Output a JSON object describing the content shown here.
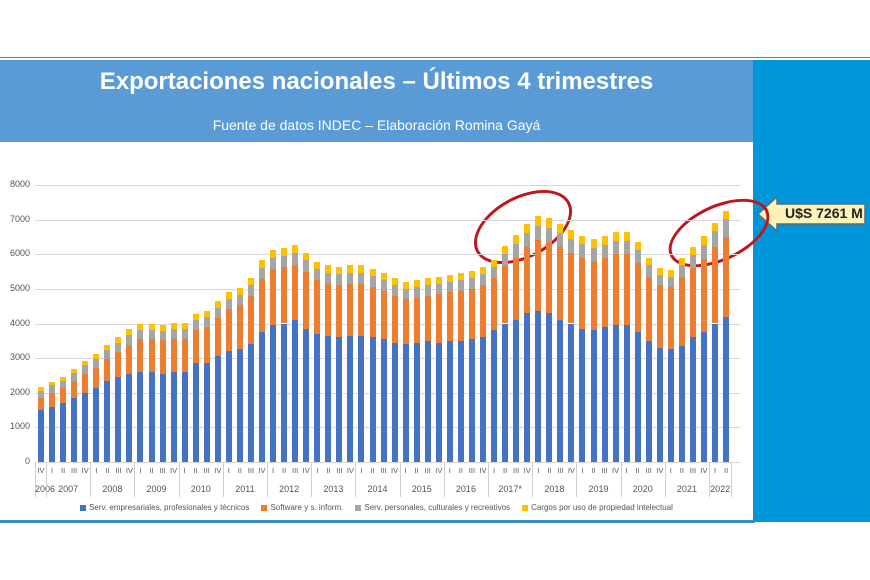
{
  "slide": {
    "title": "Exportaciones nacionales – Últimos 4 trimestres",
    "subtitle": "Fuente de datos INDEC – Elaboración Romina Gayá",
    "callout": "U$S 7261 M",
    "colors": {
      "header_bg": "#5b9bd5",
      "side_panel": "#0096db",
      "callout_bg": "#fdf3b8",
      "highlight_ellipse": "#c0161b"
    }
  },
  "chart_data": {
    "type": "bar",
    "stacked": true,
    "title": "Exportaciones nacionales – Últimos 4 trimestres",
    "subtitle": "Fuente de datos INDEC – Elaboración Romina Gayá",
    "xlabel": "",
    "ylabel": "",
    "ylim": [
      0,
      8000
    ],
    "yticks": [
      0,
      1000,
      2000,
      3000,
      4000,
      5000,
      6000,
      7000,
      8000
    ],
    "grid": true,
    "legend_position": "bottom",
    "annotation": "U$S 7261 M",
    "highlights": [
      "2017 II – 2018 I",
      "2021 III – 2022 II"
    ],
    "years": [
      {
        "label": "2006",
        "quarters": 1
      },
      {
        "label": "2007",
        "quarters": 4
      },
      {
        "label": "2008",
        "quarters": 4
      },
      {
        "label": "2009",
        "quarters": 4
      },
      {
        "label": "2010",
        "quarters": 4
      },
      {
        "label": "2011",
        "quarters": 4
      },
      {
        "label": "2012",
        "quarters": 4
      },
      {
        "label": "2013",
        "quarters": 4
      },
      {
        "label": "2014",
        "quarters": 4
      },
      {
        "label": "2015",
        "quarters": 4
      },
      {
        "label": "2016",
        "quarters": 4
      },
      {
        "label": "2017*",
        "quarters": 4
      },
      {
        "label": "2018",
        "quarters": 4
      },
      {
        "label": "2019",
        "quarters": 4
      },
      {
        "label": "2020",
        "quarters": 4
      },
      {
        "label": "2021",
        "quarters": 4
      },
      {
        "label": "2022",
        "quarters": 2
      }
    ],
    "categories": [
      "IV",
      "I",
      "II",
      "III",
      "IV",
      "I",
      "II",
      "III",
      "IV",
      "I",
      "II",
      "III",
      "IV",
      "I",
      "II",
      "III",
      "IV",
      "I",
      "II",
      "III",
      "IV",
      "I",
      "II",
      "III",
      "IV",
      "I",
      "II",
      "III",
      "IV",
      "I",
      "II",
      "III",
      "IV",
      "I",
      "II",
      "III",
      "IV",
      "I",
      "II",
      "III",
      "IV",
      "I",
      "II",
      "III",
      "IV",
      "I",
      "II",
      "III",
      "IV",
      "I",
      "II",
      "III",
      "IV",
      "I",
      "II",
      "III",
      "IV",
      "I",
      "II",
      "III",
      "IV",
      "I",
      "II"
    ],
    "series": [
      {
        "name": "Serv. empresariales, profesionales y técnicos",
        "color": "#4472c4",
        "values": [
          1500,
          1600,
          1700,
          1850,
          2000,
          2150,
          2350,
          2450,
          2550,
          2600,
          2600,
          2550,
          2600,
          2600,
          2850,
          2850,
          3050,
          3200,
          3250,
          3400,
          3750,
          3950,
          4000,
          4100,
          3850,
          3700,
          3650,
          3600,
          3650,
          3650,
          3600,
          3550,
          3450,
          3400,
          3450,
          3500,
          3450,
          3500,
          3500,
          3550,
          3600,
          3800,
          4000,
          4100,
          4300,
          4350,
          4300,
          4100,
          4000,
          3850,
          3800,
          3900,
          3950,
          3950,
          3750,
          3500,
          3300,
          3250,
          3350,
          3600,
          3750,
          4000,
          4200
        ]
      },
      {
        "name": "Software y s. inform.",
        "color": "#ed7d31",
        "values": [
          350,
          400,
          430,
          500,
          550,
          570,
          620,
          720,
          830,
          940,
          940,
          960,
          960,
          960,
          970,
          1050,
          1120,
          1220,
          1280,
          1400,
          1530,
          1620,
          1620,
          1600,
          1650,
          1550,
          1500,
          1500,
          1500,
          1500,
          1450,
          1400,
          1350,
          1300,
          1300,
          1300,
          1400,
          1400,
          1450,
          1450,
          1500,
          1500,
          1650,
          1800,
          1900,
          2050,
          2050,
          2100,
          2050,
          2050,
          2000,
          2000,
          2050,
          2050,
          2000,
          1850,
          1800,
          1800,
          2000,
          2000,
          2100,
          2200,
          2300
        ]
      },
      {
        "name": "Serv. personales, culturales y recreativos",
        "color": "#a5a5a5",
        "values": [
          200,
          210,
          220,
          230,
          240,
          250,
          260,
          270,
          280,
          280,
          280,
          280,
          280,
          280,
          280,
          280,
          280,
          290,
          300,
          310,
          320,
          330,
          330,
          330,
          320,
          320,
          320,
          320,
          320,
          320,
          310,
          300,
          300,
          300,
          300,
          300,
          300,
          300,
          300,
          310,
          320,
          330,
          360,
          390,
          410,
          430,
          420,
          410,
          400,
          390,
          380,
          380,
          380,
          380,
          370,
          330,
          300,
          300,
          330,
          380,
          420,
          460,
          520
        ]
      },
      {
        "name": "Cargos por uso de propiedad intelectual",
        "color": "#ffc000",
        "values": [
          110,
          110,
          110,
          120,
          130,
          140,
          150,
          160,
          170,
          180,
          180,
          180,
          180,
          180,
          180,
          180,
          190,
          200,
          200,
          200,
          220,
          220,
          220,
          230,
          220,
          220,
          210,
          210,
          210,
          210,
          200,
          200,
          200,
          200,
          200,
          200,
          200,
          200,
          200,
          200,
          200,
          210,
          240,
          260,
          270,
          280,
          270,
          260,
          250,
          250,
          250,
          250,
          250,
          250,
          240,
          210,
          200,
          200,
          220,
          240,
          260,
          240,
          241
        ]
      }
    ]
  },
  "legend": [
    {
      "label": "Serv. empresariales, profesionales y técnicos",
      "color": "#4472c4"
    },
    {
      "label": "Software y s. inform.",
      "color": "#ed7d31"
    },
    {
      "label": "Serv. personales, culturales y recreativos",
      "color": "#a5a5a5"
    },
    {
      "label": "Cargos por uso de propiedad intelectual",
      "color": "#ffc000"
    }
  ]
}
